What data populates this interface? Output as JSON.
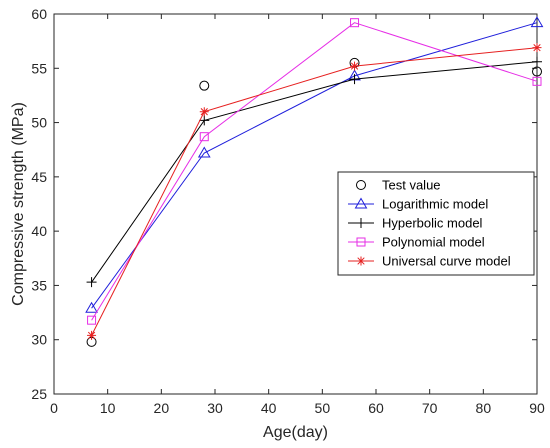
{
  "chart_data": {
    "type": "line",
    "title": "",
    "xlabel": "Age(day)",
    "ylabel": "Compressive strength (MPa)",
    "xlim": [
      0,
      90
    ],
    "ylim": [
      25,
      60
    ],
    "xticks": [
      0,
      10,
      20,
      30,
      40,
      50,
      60,
      70,
      80,
      90
    ],
    "yticks": [
      25,
      30,
      35,
      40,
      45,
      50,
      55,
      60
    ],
    "grid": false,
    "legend_position": "middle-right",
    "series": [
      {
        "name": "Test value",
        "style": "markers",
        "marker": "circle",
        "color": "#000000",
        "x": [
          7,
          28,
          56,
          90
        ],
        "y": [
          29.8,
          53.4,
          55.5,
          54.7
        ]
      },
      {
        "name": "Logarithmic model",
        "style": "line+markers",
        "marker": "triangle",
        "color": "#1f1fdb",
        "x": [
          7,
          28,
          56,
          90
        ],
        "y": [
          32.9,
          47.2,
          54.3,
          59.2
        ]
      },
      {
        "name": "Hyperbolic model",
        "style": "line+markers",
        "marker": "plus",
        "color": "#000000",
        "x": [
          7,
          28,
          56,
          90
        ],
        "y": [
          35.3,
          50.2,
          54.0,
          55.6
        ]
      },
      {
        "name": "Polynomial model",
        "style": "line+markers",
        "marker": "square",
        "color": "#e62ee6",
        "x": [
          7,
          28,
          56,
          90
        ],
        "y": [
          31.8,
          48.7,
          59.2,
          53.8
        ]
      },
      {
        "name": "Universal curve model",
        "style": "line+markers",
        "marker": "asterisk",
        "color": "#e62020",
        "x": [
          7,
          28,
          56,
          90
        ],
        "y": [
          30.4,
          51.0,
          55.2,
          56.9
        ]
      }
    ]
  }
}
